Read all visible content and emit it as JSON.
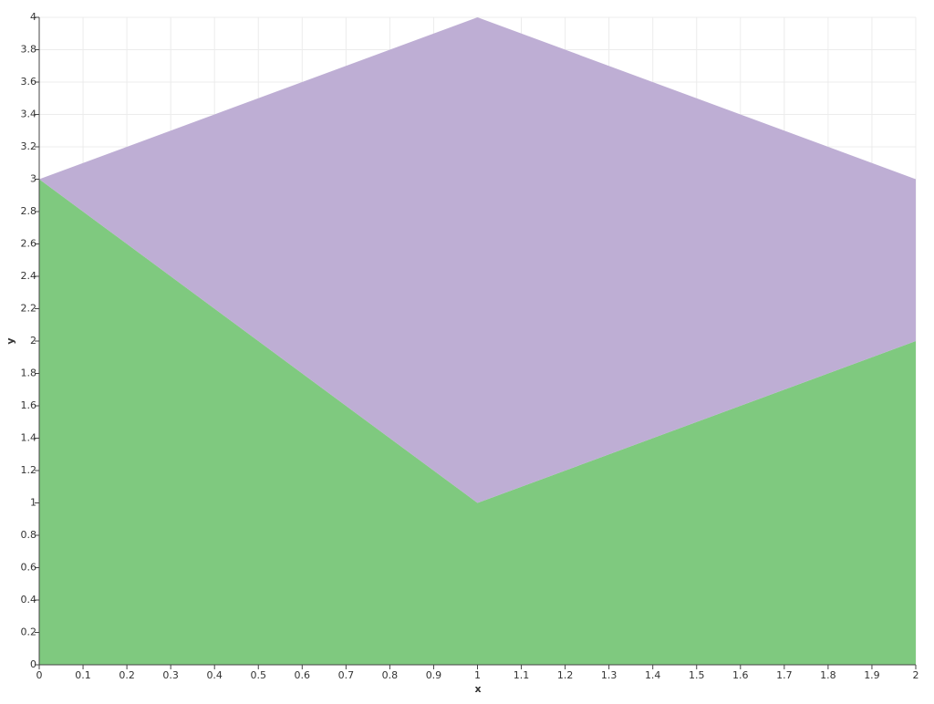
{
  "chart_data": {
    "type": "area",
    "stacked": true,
    "x": [
      0,
      1,
      2
    ],
    "series": [
      {
        "color": "#7fc97f",
        "values": [
          3,
          1,
          2
        ]
      },
      {
        "color": "#beaed4",
        "values": [
          0,
          3,
          1
        ]
      }
    ],
    "xlabel": "x",
    "ylabel": "y",
    "xlim": [
      0,
      2
    ],
    "ylim": [
      0,
      4
    ],
    "xticks": [
      0,
      0.1,
      0.2,
      0.3,
      0.4,
      0.5,
      0.6,
      0.7,
      0.8,
      0.9,
      1,
      1.1,
      1.2,
      1.3,
      1.4,
      1.5,
      1.6,
      1.7,
      1.8,
      1.9,
      2
    ],
    "yticks": [
      0,
      0.2,
      0.4,
      0.6,
      0.8,
      1,
      1.2,
      1.4,
      1.6,
      1.8,
      2,
      2.2,
      2.4,
      2.6,
      2.8,
      3,
      3.2,
      3.4,
      3.6,
      3.8,
      4
    ],
    "grid": true
  }
}
